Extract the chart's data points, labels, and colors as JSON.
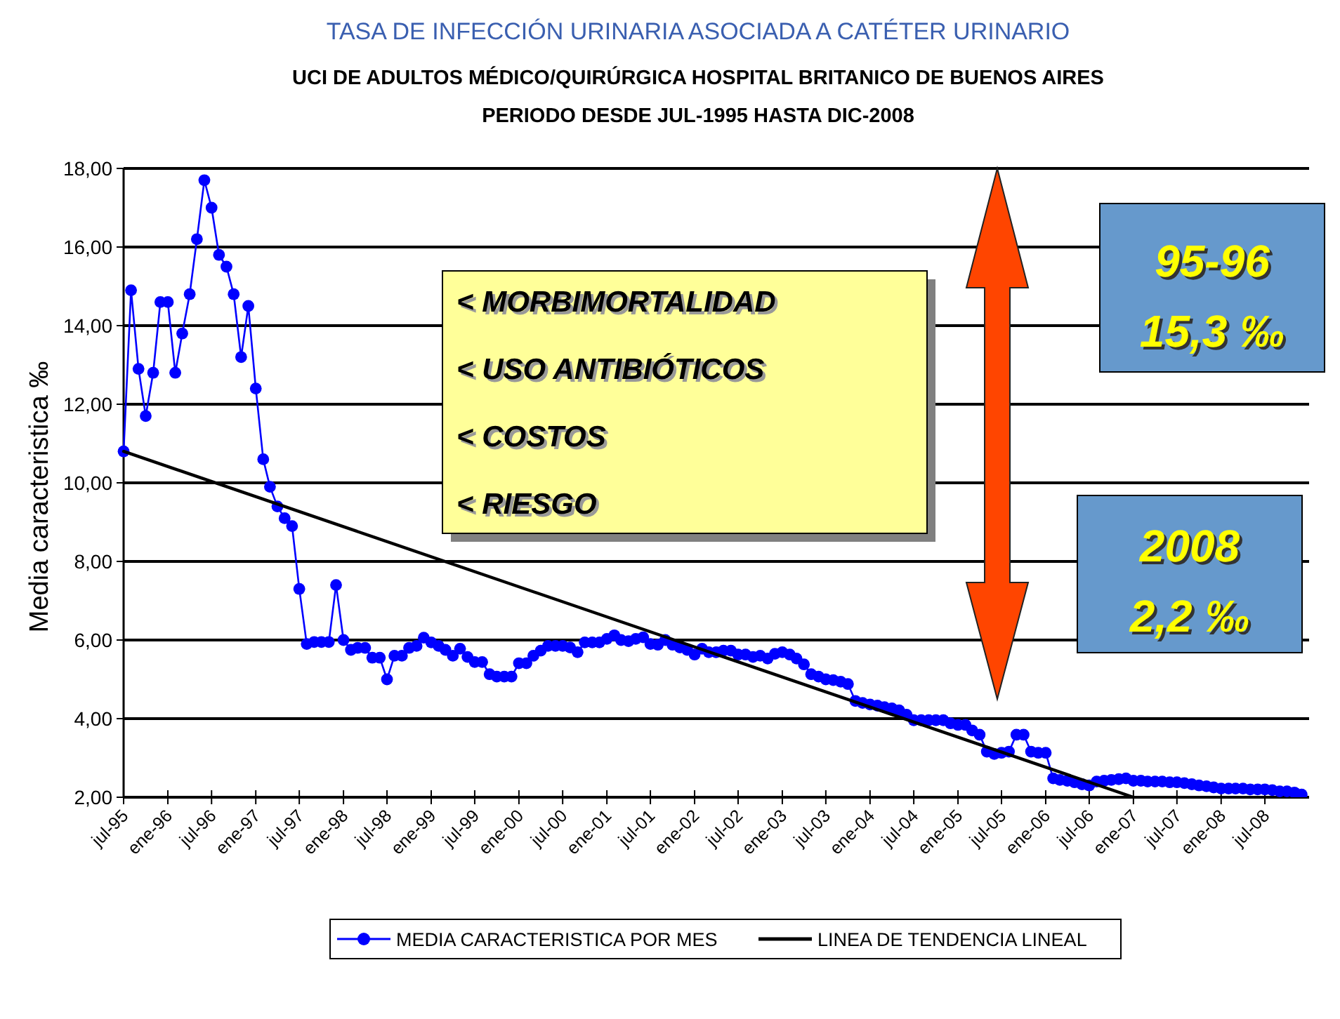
{
  "chart_data": {
    "type": "line",
    "title": "TASA DE INFECCIÓN URINARIA ASOCIADA A CATÉTER URINARIO",
    "subtitle": "UCI DE ADULTOS MÉDICO/QUIRÚRGICA HOSPITAL BRITANICO DE BUENOS AIRES\nPERIODO DESDE JUL-1995 HASTA DIC-2008",
    "ylabel": "Media caracteristica ‰",
    "x": [
      "1995-07",
      "1995-08",
      "1995-09",
      "1995-10",
      "1995-11",
      "1995-12",
      "1996-01",
      "1996-02",
      "1996-03",
      "1996-04",
      "1996-05",
      "1996-06",
      "1996-07",
      "1996-08",
      "1996-09",
      "1996-10",
      "1996-11",
      "1996-12",
      "1997-01",
      "1997-02",
      "1997-03",
      "1997-04",
      "1997-05",
      "1997-06",
      "1997-07",
      "1997-08",
      "1997-09",
      "1997-10",
      "1997-11",
      "1997-12",
      "1998-01",
      "1998-02",
      "1998-03",
      "1998-04",
      "1998-05",
      "1998-06",
      "1998-07",
      "1998-08",
      "1998-09",
      "1998-10",
      "1998-11",
      "1998-12",
      "1999-01",
      "1999-02",
      "1999-03",
      "1999-04",
      "1999-05",
      "1999-06",
      "1999-07",
      "1999-08",
      "1999-09",
      "1999-10",
      "1999-11",
      "1999-12",
      "2000-01",
      "2000-02",
      "2000-03",
      "2000-04",
      "2000-05",
      "2000-06",
      "2000-07",
      "2000-08",
      "2000-09",
      "2000-10",
      "2000-11",
      "2000-12",
      "2001-01",
      "2001-02",
      "2001-03",
      "2001-04",
      "2001-05",
      "2001-06",
      "2001-07",
      "2001-08",
      "2001-09",
      "2001-10",
      "2001-11",
      "2001-12",
      "2002-01",
      "2002-02",
      "2002-03",
      "2002-04",
      "2002-05",
      "2002-06",
      "2002-07",
      "2002-08",
      "2002-09",
      "2002-10",
      "2002-11",
      "2002-12",
      "2003-01",
      "2003-02",
      "2003-03",
      "2003-04",
      "2003-05",
      "2003-06",
      "2003-07",
      "2003-08",
      "2003-09",
      "2003-10",
      "2003-11",
      "2003-12",
      "2004-01",
      "2004-02",
      "2004-03",
      "2004-04",
      "2004-05",
      "2004-06",
      "2004-07",
      "2004-08",
      "2004-09",
      "2004-10",
      "2004-11",
      "2004-12",
      "2005-01",
      "2005-02",
      "2005-03",
      "2005-04",
      "2005-05",
      "2005-06",
      "2005-07",
      "2005-08",
      "2005-09",
      "2005-10",
      "2005-11",
      "2005-12",
      "2006-01",
      "2006-02",
      "2006-03",
      "2006-04",
      "2006-05",
      "2006-06",
      "2006-07",
      "2006-08",
      "2006-09",
      "2006-10",
      "2006-11",
      "2006-12",
      "2007-01",
      "2007-02",
      "2007-03",
      "2007-04",
      "2007-05",
      "2007-06",
      "2007-07",
      "2007-08",
      "2007-09",
      "2007-10",
      "2007-11",
      "2007-12",
      "2008-01",
      "2008-02",
      "2008-03",
      "2008-04",
      "2008-05",
      "2008-06",
      "2008-07",
      "2008-08",
      "2008-09",
      "2008-10",
      "2008-11",
      "2008-12"
    ],
    "series": [
      {
        "name": "MEDIA CARACTERISTICA POR MES",
        "color": "#0000ff",
        "marker": "circle",
        "values": [
          10.8,
          14.9,
          12.9,
          11.7,
          12.8,
          14.6,
          14.6,
          12.8,
          13.8,
          14.8,
          16.2,
          17.7,
          17.0,
          15.8,
          15.5,
          14.8,
          13.2,
          14.5,
          12.4,
          10.6,
          9.9,
          9.4,
          9.1,
          8.9,
          7.3,
          5.9,
          5.95,
          5.95,
          5.95,
          7.4,
          6.0,
          5.75,
          5.8,
          5.8,
          5.55,
          5.55,
          5.0,
          5.6,
          5.6,
          5.8,
          5.85,
          6.06,
          5.94,
          5.85,
          5.75,
          5.6,
          5.78,
          5.57,
          5.44,
          5.44,
          5.13,
          5.07,
          5.07,
          5.07,
          5.41,
          5.41,
          5.6,
          5.73,
          5.85,
          5.85,
          5.85,
          5.81,
          5.69,
          5.94,
          5.94,
          5.94,
          6.03,
          6.12,
          6.0,
          5.97,
          6.03,
          6.07,
          5.9,
          5.88,
          6.0,
          5.88,
          5.81,
          5.75,
          5.63,
          5.78,
          5.69,
          5.69,
          5.73,
          5.73,
          5.63,
          5.63,
          5.57,
          5.6,
          5.53,
          5.65,
          5.69,
          5.63,
          5.53,
          5.38,
          5.13,
          5.07,
          5.0,
          4.98,
          4.94,
          4.88,
          4.45,
          4.4,
          4.36,
          4.33,
          4.29,
          4.26,
          4.21,
          4.1,
          3.96,
          3.96,
          3.96,
          3.96,
          3.96,
          3.88,
          3.84,
          3.84,
          3.7,
          3.59,
          3.16,
          3.1,
          3.13,
          3.16,
          3.59,
          3.59,
          3.16,
          3.13,
          3.13,
          2.48,
          2.44,
          2.42,
          2.38,
          2.33,
          2.3,
          2.4,
          2.42,
          2.44,
          2.46,
          2.48,
          2.42,
          2.42,
          2.4,
          2.4,
          2.4,
          2.38,
          2.38,
          2.36,
          2.33,
          2.3,
          2.28,
          2.25,
          2.22,
          2.22,
          2.22,
          2.22,
          2.2,
          2.2,
          2.2,
          2.18,
          2.15,
          2.15,
          2.12,
          2.07
        ]
      },
      {
        "name": "LINEA DE TENDENCIA LINEAL",
        "color": "#000000",
        "type": "line",
        "marker": "none",
        "x": [
          "1995-07",
          "2007-01"
        ],
        "values": [
          10.8,
          2.0
        ]
      }
    ],
    "xlim": [
      "1995-07",
      "2009-01"
    ],
    "xticks": [
      {
        "value": "1995-07",
        "label": "jul-95"
      },
      {
        "value": "1996-01",
        "label": "ene-96"
      },
      {
        "value": "1996-07",
        "label": "jul-96"
      },
      {
        "value": "1997-01",
        "label": "ene-97"
      },
      {
        "value": "1997-07",
        "label": "jul-97"
      },
      {
        "value": "1998-01",
        "label": "ene-98"
      },
      {
        "value": "1998-07",
        "label": "jul-98"
      },
      {
        "value": "1999-01",
        "label": "ene-99"
      },
      {
        "value": "1999-07",
        "label": "jul-99"
      },
      {
        "value": "2000-01",
        "label": "ene-00"
      },
      {
        "value": "2000-07",
        "label": "jul-00"
      },
      {
        "value": "2001-01",
        "label": "ene-01"
      },
      {
        "value": "2001-07",
        "label": "jul-01"
      },
      {
        "value": "2002-01",
        "label": "ene-02"
      },
      {
        "value": "2002-07",
        "label": "jul-02"
      },
      {
        "value": "2003-01",
        "label": "ene-03"
      },
      {
        "value": "2003-07",
        "label": "jul-03"
      },
      {
        "value": "2004-01",
        "label": "ene-04"
      },
      {
        "value": "2004-07",
        "label": "jul-04"
      },
      {
        "value": "2005-01",
        "label": "ene-05"
      },
      {
        "value": "2005-07",
        "label": "jul-05"
      },
      {
        "value": "2006-01",
        "label": "ene-06"
      },
      {
        "value": "2006-07",
        "label": "jul-06"
      },
      {
        "value": "2007-01",
        "label": "ene-07"
      },
      {
        "value": "2007-07",
        "label": "jul-07"
      },
      {
        "value": "2008-01",
        "label": "ene-08"
      },
      {
        "value": "2008-07",
        "label": "jul-08"
      }
    ],
    "ylim": [
      2,
      18
    ],
    "yticks": [
      {
        "value": 2,
        "label": "2,00"
      },
      {
        "value": 4,
        "label": "4,00"
      },
      {
        "value": 6,
        "label": "6,00"
      },
      {
        "value": 8,
        "label": "8,00"
      },
      {
        "value": 10,
        "label": "10,00"
      },
      {
        "value": 12,
        "label": "12,00"
      },
      {
        "value": 14,
        "label": "14,00"
      },
      {
        "value": 16,
        "label": "16,00"
      },
      {
        "value": 18,
        "label": "18,00"
      }
    ],
    "grid": "y",
    "legend": "bottom",
    "line_style": "solid",
    "annotations": [
      "< MORBIMORTALIDAD",
      "< USO ANTIBIÓTICOS",
      "< COSTOS",
      "< RIESGO",
      "95-96",
      "15,3 ‰",
      "2008",
      "2,2 ‰"
    ]
  }
}
